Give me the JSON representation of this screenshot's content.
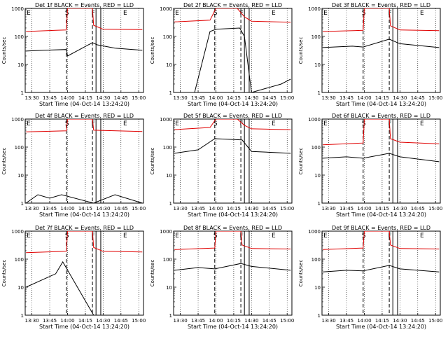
{
  "figure": {
    "date_label": "Start Time (04-Oct-14 13:24:20)",
    "ylabel": "Counts/sec",
    "x_ticks": [
      "13:30",
      "13:45",
      "14:00",
      "14:15",
      "14:30",
      "14:45",
      "15:00"
    ],
    "y_ticks": [
      "1",
      "10",
      "100",
      "1000"
    ],
    "markers": [
      "E",
      "S",
      "F",
      "E"
    ],
    "series_colors": {
      "events": "#000000",
      "lld": "#e00000"
    }
  },
  "chart_data": [
    {
      "type": "line",
      "title": "Det 1f BLACK = Events, RED = LLD",
      "xlabel": "Start Time (04-Oct-14 13:24:20)",
      "ylabel": "Counts/sec",
      "xlim": [
        "13:24:20",
        "15:04:00"
      ],
      "ylim": [
        1,
        1000
      ],
      "yscale": "log",
      "series": [
        {
          "name": "Events",
          "color": "#000000",
          "values": [
            {
              "x": "13:25",
              "y": 30
            },
            {
              "x": "13:40",
              "y": 32
            },
            {
              "x": "13:59",
              "y": 34
            },
            {
              "x": "14:00",
              "y": 20
            },
            {
              "x": "14:21",
              "y": 60
            },
            {
              "x": "14:25",
              "y": 50
            },
            {
              "x": "14:40",
              "y": 38
            },
            {
              "x": "15:03",
              "y": 32
            }
          ]
        },
        {
          "name": "LLD",
          "color": "#e00000",
          "values": [
            {
              "x": "13:25",
              "y": 150
            },
            {
              "x": "13:50",
              "y": 165
            },
            {
              "x": "13:59",
              "y": 170
            },
            {
              "x": "14:00",
              "y": 1000
            },
            {
              "x": "14:21",
              "y": 1000
            },
            {
              "x": "14:22",
              "y": 250
            },
            {
              "x": "14:30",
              "y": 180
            },
            {
              "x": "15:03",
              "y": 175
            }
          ]
        }
      ]
    },
    {
      "type": "line",
      "title": "Det 2f BLACK = Events, RED = LLD",
      "xlabel": "Start Time (04-Oct-14 13:24:20)",
      "ylabel": "Counts/sec",
      "xlim": [
        "13:24:20",
        "15:04:00"
      ],
      "ylim": [
        1,
        1000
      ],
      "yscale": "log",
      "series": [
        {
          "name": "Events",
          "color": "#000000",
          "values": [
            {
              "x": "13:42",
              "y": 1
            },
            {
              "x": "13:48",
              "y": 10
            },
            {
              "x": "13:55",
              "y": 150
            },
            {
              "x": "14:00",
              "y": 180
            },
            {
              "x": "14:20",
              "y": 200
            },
            {
              "x": "14:24",
              "y": 100
            },
            {
              "x": "14:30",
              "y": 1
            },
            {
              "x": "14:55",
              "y": 2
            },
            {
              "x": "15:03",
              "y": 3
            }
          ]
        },
        {
          "name": "LLD",
          "color": "#e00000",
          "values": [
            {
              "x": "13:25",
              "y": 330
            },
            {
              "x": "13:55",
              "y": 380
            },
            {
              "x": "14:00",
              "y": 1000
            },
            {
              "x": "14:18",
              "y": 1000
            },
            {
              "x": "14:24",
              "y": 500
            },
            {
              "x": "14:30",
              "y": 350
            },
            {
              "x": "15:03",
              "y": 320
            }
          ]
        }
      ]
    },
    {
      "type": "line",
      "title": "Det 3f BLACK = Events, RED = LLD",
      "xlabel": "Start Time (04-Oct-14 13:24:20)",
      "ylabel": "Counts/sec",
      "xlim": [
        "13:24:20",
        "15:04:00"
      ],
      "ylim": [
        1,
        1000
      ],
      "yscale": "log",
      "series": [
        {
          "name": "Events",
          "color": "#000000",
          "values": [
            {
              "x": "13:25",
              "y": 40
            },
            {
              "x": "13:50",
              "y": 45
            },
            {
              "x": "13:59",
              "y": 42
            },
            {
              "x": "14:21",
              "y": 80
            },
            {
              "x": "14:30",
              "y": 55
            },
            {
              "x": "15:03",
              "y": 40
            }
          ]
        },
        {
          "name": "LLD",
          "color": "#e00000",
          "values": [
            {
              "x": "13:25",
              "y": 150
            },
            {
              "x": "13:59",
              "y": 165
            },
            {
              "x": "14:00",
              "y": 1000
            },
            {
              "x": "14:21",
              "y": 1000
            },
            {
              "x": "14:22",
              "y": 240
            },
            {
              "x": "14:30",
              "y": 170
            },
            {
              "x": "15:03",
              "y": 160
            }
          ]
        }
      ]
    },
    {
      "type": "line",
      "title": "Det 4f BLACK = Events, RED = LLD",
      "xlabel": "Start Time (04-Oct-14 13:24:20)",
      "ylabel": "Counts/sec",
      "xlim": [
        "13:24:20",
        "15:04:00"
      ],
      "ylim": [
        1,
        1000
      ],
      "yscale": "log",
      "series": [
        {
          "name": "Events",
          "color": "#000000",
          "values": [
            {
              "x": "13:25",
              "y": 1
            },
            {
              "x": "13:35",
              "y": 2
            },
            {
              "x": "13:45",
              "y": 1.5
            },
            {
              "x": "13:55",
              "y": 2
            },
            {
              "x": "14:22",
              "y": 1
            },
            {
              "x": "14:40",
              "y": 2
            },
            {
              "x": "15:03",
              "y": 1
            }
          ]
        },
        {
          "name": "LLD",
          "color": "#e00000",
          "values": [
            {
              "x": "13:25",
              "y": 350
            },
            {
              "x": "13:59",
              "y": 380
            },
            {
              "x": "14:00",
              "y": 1000
            },
            {
              "x": "14:21",
              "y": 1000
            },
            {
              "x": "14:22",
              "y": 400
            },
            {
              "x": "15:03",
              "y": 360
            }
          ]
        }
      ]
    },
    {
      "type": "line",
      "title": "Det 5f BLACK = Events, RED = LLD",
      "xlabel": "Start Time (04-Oct-14 13:24:20)",
      "ylabel": "Counts/sec",
      "xlim": [
        "13:24:20",
        "15:04:00"
      ],
      "ylim": [
        1,
        1000
      ],
      "yscale": "log",
      "series": [
        {
          "name": "Events",
          "color": "#000000",
          "values": [
            {
              "x": "13:25",
              "y": 60
            },
            {
              "x": "13:45",
              "y": 80
            },
            {
              "x": "13:59",
              "y": 200
            },
            {
              "x": "14:22",
              "y": 180
            },
            {
              "x": "14:30",
              "y": 70
            },
            {
              "x": "15:03",
              "y": 60
            }
          ]
        },
        {
          "name": "LLD",
          "color": "#e00000",
          "values": [
            {
              "x": "13:25",
              "y": 420
            },
            {
              "x": "13:55",
              "y": 500
            },
            {
              "x": "14:00",
              "y": 1000
            },
            {
              "x": "14:18",
              "y": 1000
            },
            {
              "x": "14:24",
              "y": 600
            },
            {
              "x": "14:30",
              "y": 450
            },
            {
              "x": "15:03",
              "y": 420
            }
          ]
        }
      ]
    },
    {
      "type": "line",
      "title": "Det 6f BLACK = Events, RED = LLD",
      "xlabel": "Start Time (04-Oct-14 13:24:20)",
      "ylabel": "Counts/sec",
      "xlim": [
        "13:24:20",
        "15:04:00"
      ],
      "ylim": [
        1,
        1000
      ],
      "yscale": "log",
      "series": [
        {
          "name": "Events",
          "color": "#000000",
          "values": [
            {
              "x": "13:25",
              "y": 40
            },
            {
              "x": "13:45",
              "y": 45
            },
            {
              "x": "13:59",
              "y": 40
            },
            {
              "x": "14:21",
              "y": 60
            },
            {
              "x": "14:30",
              "y": 45
            },
            {
              "x": "15:03",
              "y": 30
            }
          ]
        },
        {
          "name": "LLD",
          "color": "#e00000",
          "values": [
            {
              "x": "13:25",
              "y": 120
            },
            {
              "x": "13:59",
              "y": 140
            },
            {
              "x": "14:00",
              "y": 1000
            },
            {
              "x": "14:21",
              "y": 1000
            },
            {
              "x": "14:22",
              "y": 200
            },
            {
              "x": "14:30",
              "y": 150
            },
            {
              "x": "15:03",
              "y": 130
            }
          ]
        }
      ]
    },
    {
      "type": "line",
      "title": "Det 7f BLACK = Events, RED = LLD",
      "xlabel": "Start Time (04-Oct-14 13:24:20)",
      "ylabel": "Counts/sec",
      "xlim": [
        "13:24:20",
        "15:04:00"
      ],
      "ylim": [
        1,
        1000
      ],
      "yscale": "log",
      "series": [
        {
          "name": "Events",
          "color": "#000000",
          "values": [
            {
              "x": "13:25",
              "y": 10
            },
            {
              "x": "13:50",
              "y": 30
            },
            {
              "x": "13:56",
              "y": 80
            },
            {
              "x": "14:22",
              "y": 1
            }
          ]
        },
        {
          "name": "LLD",
          "color": "#e00000",
          "values": [
            {
              "x": "13:25",
              "y": 170
            },
            {
              "x": "13:59",
              "y": 190
            },
            {
              "x": "14:00",
              "y": 1000
            },
            {
              "x": "14:21",
              "y": 1000
            },
            {
              "x": "14:22",
              "y": 260
            },
            {
              "x": "14:30",
              "y": 190
            },
            {
              "x": "15:03",
              "y": 180
            }
          ]
        }
      ]
    },
    {
      "type": "line",
      "title": "Det 8f BLACK = Events, RED = LLD",
      "xlabel": "Start Time (04-Oct-14 13:24:20)",
      "ylabel": "Counts/sec",
      "xlim": [
        "13:24:20",
        "15:04:00"
      ],
      "ylim": [
        1,
        1000
      ],
      "yscale": "log",
      "series": [
        {
          "name": "Events",
          "color": "#000000",
          "values": [
            {
              "x": "13:25",
              "y": 40
            },
            {
              "x": "13:45",
              "y": 50
            },
            {
              "x": "13:59",
              "y": 45
            },
            {
              "x": "14:21",
              "y": 70
            },
            {
              "x": "14:30",
              "y": 55
            },
            {
              "x": "15:03",
              "y": 40
            }
          ]
        },
        {
          "name": "LLD",
          "color": "#e00000",
          "values": [
            {
              "x": "13:25",
              "y": 220
            },
            {
              "x": "13:59",
              "y": 250
            },
            {
              "x": "14:00",
              "y": 1000
            },
            {
              "x": "14:21",
              "y": 1000
            },
            {
              "x": "14:22",
              "y": 320
            },
            {
              "x": "14:30",
              "y": 240
            },
            {
              "x": "15:03",
              "y": 230
            }
          ]
        }
      ]
    },
    {
      "type": "line",
      "title": "Det 9f BLACK = Events, RED = LLD",
      "xlabel": "Start Time (04-Oct-14 13:24:20)",
      "ylabel": "Counts/sec",
      "xlim": [
        "13:24:20",
        "15:04:00"
      ],
      "ylim": [
        1,
        1000
      ],
      "yscale": "log",
      "series": [
        {
          "name": "Events",
          "color": "#000000",
          "values": [
            {
              "x": "13:25",
              "y": 35
            },
            {
              "x": "13:45",
              "y": 40
            },
            {
              "x": "13:59",
              "y": 38
            },
            {
              "x": "14:21",
              "y": 60
            },
            {
              "x": "14:30",
              "y": 45
            },
            {
              "x": "15:03",
              "y": 35
            }
          ]
        },
        {
          "name": "LLD",
          "color": "#e00000",
          "values": [
            {
              "x": "13:25",
              "y": 220
            },
            {
              "x": "13:59",
              "y": 250
            },
            {
              "x": "14:00",
              "y": 1000
            },
            {
              "x": "14:21",
              "y": 1000
            },
            {
              "x": "14:22",
              "y": 320
            },
            {
              "x": "14:30",
              "y": 240
            },
            {
              "x": "15:03",
              "y": 230
            }
          ]
        }
      ]
    }
  ]
}
